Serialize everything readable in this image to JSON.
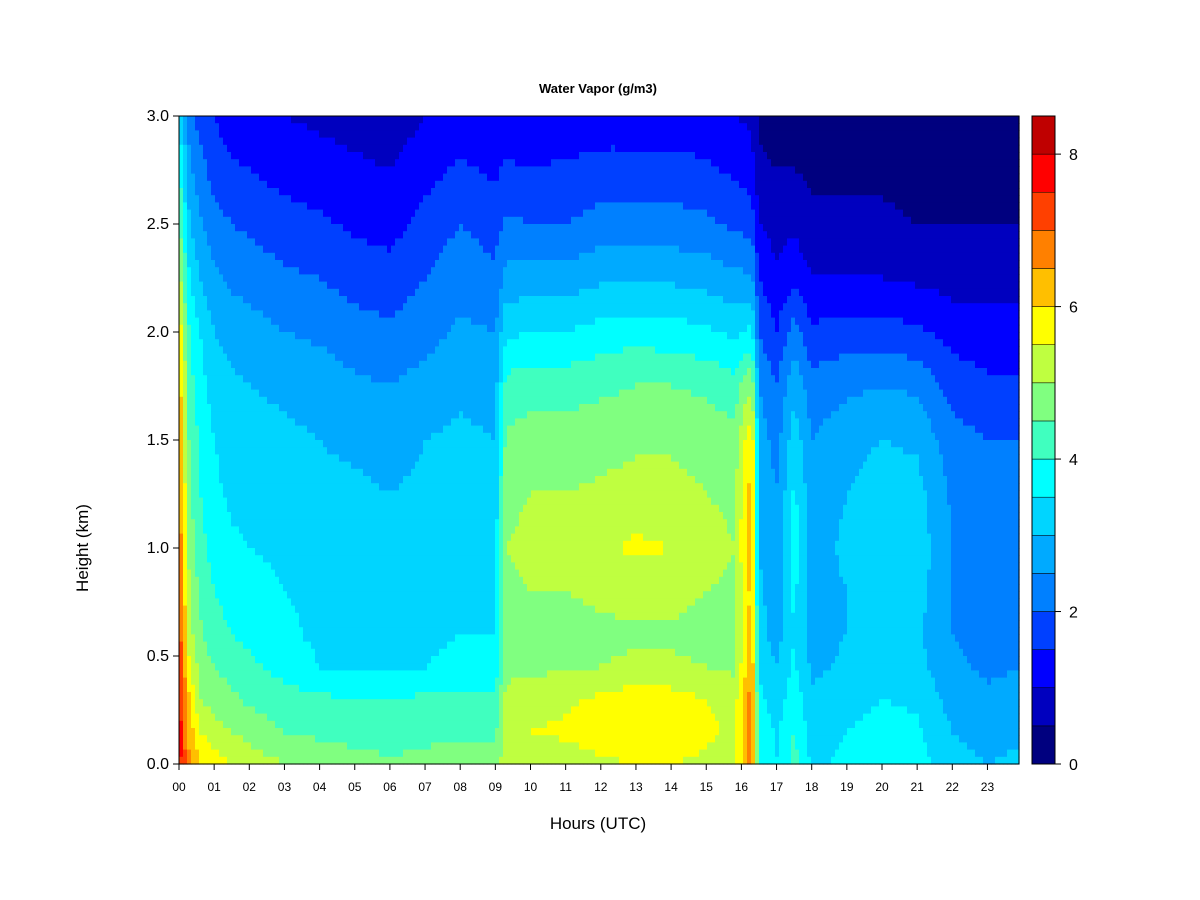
{
  "chart_data": {
    "type": "heatmap",
    "title": "Water Vapor (g/m3)",
    "xlabel": "Hours (UTC)",
    "ylabel": "Height (km)",
    "x_ticks": [
      "00",
      "01",
      "02",
      "03",
      "04",
      "05",
      "06",
      "07",
      "08",
      "09",
      "10",
      "11",
      "12",
      "13",
      "14",
      "15",
      "16",
      "17",
      "18",
      "19",
      "20",
      "21",
      "22",
      "23"
    ],
    "y_ticks": [
      "0.0",
      "0.5",
      "1.0",
      "1.5",
      "2.0",
      "2.5",
      "3.0"
    ],
    "xlim": [
      0,
      23.9
    ],
    "ylim": [
      0,
      3.0
    ],
    "colorbar": {
      "ticks": [
        "0",
        "2",
        "4",
        "6",
        "8"
      ],
      "range": [
        0,
        8.5
      ],
      "levels": [
        0,
        0.5,
        1,
        1.5,
        2,
        2.5,
        3,
        3.5,
        4,
        4.5,
        5,
        5.5,
        6,
        6.5,
        7,
        7.5,
        8,
        8.5
      ],
      "colors": [
        "#00007F",
        "#0000BF",
        "#0000FF",
        "#0040FF",
        "#0080FF",
        "#00AAFF",
        "#00D5FF",
        "#00FFFF",
        "#40FFBF",
        "#80FF80",
        "#BFFF40",
        "#FFFF00",
        "#FFBF00",
        "#FF8000",
        "#FF4000",
        "#FF0000",
        "#BF0000",
        "#7F0000"
      ]
    },
    "heights_km": [
      0.0,
      0.15,
      0.3,
      0.45,
      0.6,
      0.8,
      1.0,
      1.25,
      1.5,
      1.75,
      2.0,
      2.25,
      2.5,
      2.75,
      3.0
    ],
    "hours": [
      0.05,
      0.3,
      0.6,
      1.0,
      1.5,
      2.0,
      3.0,
      4.0,
      5.0,
      6.0,
      7.0,
      8.0,
      9.0,
      9.3,
      10.0,
      11.0,
      12.0,
      13.0,
      14.0,
      15.0,
      15.8,
      16.3,
      16.5,
      17.0,
      17.5,
      18.0,
      19.0,
      20.0,
      21.0,
      22.0,
      23.0,
      23.9
    ],
    "values": [
      [
        7.5,
        7.6,
        7.4,
        7.2,
        7.0,
        6.8,
        6.6,
        6.4,
        6.2,
        6.0,
        5.6,
        5.0,
        4.4,
        3.8,
        3.2
      ],
      [
        6.5,
        6.3,
        6.0,
        5.5,
        5.2,
        5.0,
        4.8,
        4.6,
        4.4,
        4.2,
        4.0,
        3.5,
        3.0,
        2.6,
        2.2
      ],
      [
        6.0,
        5.5,
        5.0,
        4.8,
        4.6,
        4.4,
        4.2,
        4.0,
        3.9,
        3.7,
        3.5,
        3.0,
        2.6,
        2.2,
        1.8
      ],
      [
        5.8,
        5.2,
        4.8,
        4.5,
        4.2,
        4.0,
        3.8,
        3.6,
        3.5,
        3.3,
        3.0,
        2.6,
        2.2,
        1.8,
        1.5
      ],
      [
        5.5,
        5.0,
        4.6,
        4.3,
        4.0,
        3.8,
        3.6,
        3.4,
        3.3,
        3.1,
        2.8,
        2.4,
        2.0,
        1.6,
        1.2
      ],
      [
        5.3,
        4.8,
        4.4,
        4.1,
        3.9,
        3.7,
        3.5,
        3.3,
        3.2,
        3.0,
        2.7,
        2.3,
        1.9,
        1.5,
        1.1
      ],
      [
        5.0,
        4.5,
        4.2,
        3.8,
        3.6,
        3.5,
        3.4,
        3.2,
        3.1,
        2.9,
        2.5,
        2.1,
        1.7,
        1.3,
        1.0
      ],
      [
        4.8,
        4.4,
        4.1,
        3.5,
        3.4,
        3.4,
        3.3,
        3.1,
        3.0,
        2.8,
        2.4,
        2.0,
        1.6,
        1.2,
        0.9
      ],
      [
        4.7,
        4.3,
        4.0,
        3.4,
        3.3,
        3.3,
        3.2,
        3.1,
        2.9,
        2.6,
        2.2,
        1.8,
        1.4,
        1.1,
        0.8
      ],
      [
        4.6,
        4.2,
        4.0,
        3.4,
        3.3,
        3.3,
        3.2,
        3.0,
        2.8,
        2.5,
        2.1,
        1.7,
        1.3,
        1.0,
        0.7
      ],
      [
        4.7,
        4.3,
        4.1,
        3.5,
        3.4,
        3.3,
        3.3,
        3.1,
        3.0,
        2.7,
        2.3,
        2.0,
        1.7,
        1.3,
        1.0
      ],
      [
        4.8,
        4.4,
        4.2,
        3.6,
        3.5,
        3.4,
        3.3,
        3.2,
        3.1,
        2.9,
        2.6,
        2.3,
        2.0,
        1.6,
        1.2
      ],
      [
        4.8,
        4.4,
        4.1,
        3.6,
        3.5,
        3.4,
        3.3,
        3.2,
        3.0,
        2.8,
        2.5,
        2.1,
        1.8,
        1.4,
        1.0
      ],
      [
        5.2,
        5.4,
        5.2,
        4.8,
        4.7,
        4.8,
        5.0,
        4.8,
        4.6,
        4.2,
        3.4,
        2.7,
        2.1,
        1.6,
        1.1
      ],
      [
        5.3,
        5.5,
        5.3,
        4.9,
        4.8,
        5.0,
        5.2,
        5.0,
        4.7,
        4.3,
        3.5,
        2.7,
        2.0,
        1.5,
        1.1
      ],
      [
        5.2,
        5.6,
        5.4,
        4.9,
        4.8,
        5.0,
        5.2,
        5.0,
        4.7,
        4.3,
        3.5,
        2.7,
        2.0,
        1.6,
        1.1
      ],
      [
        5.4,
        5.8,
        5.6,
        5.0,
        4.9,
        5.1,
        5.4,
        5.1,
        4.8,
        4.4,
        3.7,
        2.9,
        2.2,
        1.7,
        1.2
      ],
      [
        5.5,
        5.9,
        5.8,
        5.1,
        4.9,
        5.2,
        5.6,
        5.2,
        4.9,
        4.5,
        3.8,
        2.9,
        2.2,
        1.7,
        1.2
      ],
      [
        5.5,
        5.9,
        5.7,
        5.1,
        4.9,
        5.2,
        5.5,
        5.2,
        4.9,
        4.5,
        3.7,
        2.9,
        2.2,
        1.7,
        1.2
      ],
      [
        5.4,
        5.6,
        5.5,
        5.0,
        4.8,
        5.0,
        5.2,
        5.0,
        4.8,
        4.4,
        3.6,
        2.8,
        2.1,
        1.6,
        1.1
      ],
      [
        5.3,
        5.4,
        5.3,
        4.9,
        4.8,
        4.9,
        5.0,
        4.9,
        4.7,
        4.2,
        3.4,
        2.6,
        1.9,
        1.4,
        1.0
      ],
      [
        6.8,
        6.9,
        6.8,
        6.5,
        6.3,
        6.2,
        6.5,
        6.3,
        6.0,
        5.0,
        3.6,
        2.6,
        1.8,
        1.2,
        0.9
      ],
      [
        4.0,
        3.9,
        3.7,
        3.4,
        3.2,
        3.1,
        3.0,
        2.9,
        2.8,
        2.5,
        2.0,
        1.5,
        1.0,
        0.6,
        0.4
      ],
      [
        3.5,
        3.4,
        3.2,
        3.0,
        2.8,
        2.7,
        2.6,
        2.5,
        2.3,
        2.0,
        1.5,
        1.1,
        0.8,
        0.5,
        0.3
      ],
      [
        4.2,
        4.0,
        3.8,
        3.6,
        3.5,
        3.6,
        3.8,
        3.6,
        3.3,
        2.9,
        2.2,
        1.4,
        0.9,
        0.5,
        0.3
      ],
      [
        3.4,
        3.3,
        3.1,
        2.9,
        2.8,
        2.8,
        2.8,
        2.7,
        2.5,
        2.2,
        1.6,
        1.0,
        0.6,
        0.4,
        0.2
      ],
      [
        3.6,
        3.5,
        3.3,
        3.1,
        3.0,
        3.0,
        3.1,
        3.0,
        2.8,
        2.4,
        1.7,
        1.0,
        0.6,
        0.4,
        0.2
      ],
      [
        3.8,
        3.7,
        3.5,
        3.3,
        3.2,
        3.3,
        3.4,
        3.3,
        3.0,
        2.5,
        1.7,
        1.0,
        0.6,
        0.4,
        0.2
      ],
      [
        3.7,
        3.6,
        3.4,
        3.2,
        3.1,
        3.2,
        3.3,
        3.2,
        2.9,
        2.4,
        1.6,
        0.9,
        0.5,
        0.3,
        0.2
      ],
      [
        3.2,
        3.0,
        2.8,
        2.6,
        2.5,
        2.5,
        2.5,
        2.4,
        2.2,
        1.8,
        1.3,
        0.8,
        0.5,
        0.3,
        0.2
      ],
      [
        3.0,
        2.8,
        2.6,
        2.4,
        2.3,
        2.3,
        2.3,
        2.2,
        2.0,
        1.6,
        1.2,
        0.8,
        0.5,
        0.3,
        0.2
      ],
      [
        3.1,
        2.9,
        2.7,
        2.5,
        2.4,
        2.3,
        2.3,
        2.2,
        2.0,
        1.6,
        1.2,
        0.8,
        0.5,
        0.3,
        0.2
      ]
    ]
  }
}
